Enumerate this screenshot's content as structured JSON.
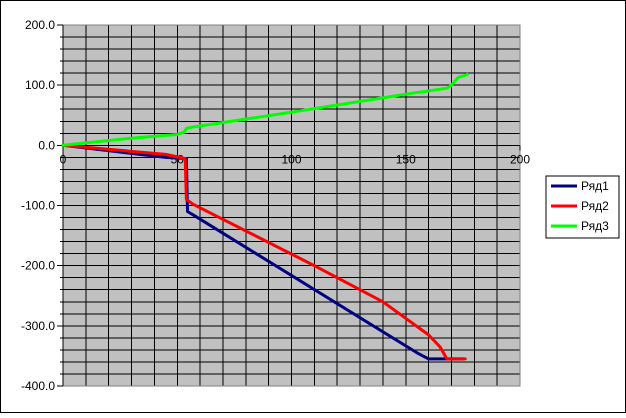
{
  "chart_data": {
    "type": "line",
    "title": "",
    "xlabel": "",
    "ylabel": "",
    "xlim": [
      0,
      200
    ],
    "ylim": [
      -400,
      200
    ],
    "x_ticks": [
      0,
      50,
      100,
      150,
      200
    ],
    "x_tick_labels": [
      "0",
      "50",
      "100",
      "150",
      "200"
    ],
    "y_ticks": [
      200,
      100,
      0,
      -100,
      -200,
      -300,
      -400
    ],
    "y_tick_labels": [
      "200.0",
      "100.0",
      "0.0",
      "-100.0",
      "-200.0",
      "-300.0",
      "-400.0"
    ],
    "grid": true,
    "legend_position": "right",
    "plot_background": "#c0c0c0",
    "series": [
      {
        "name": "Ряд1",
        "color": "#000080",
        "points": [
          [
            0,
            0
          ],
          [
            45,
            -20
          ],
          [
            54,
            -22
          ],
          [
            54.5,
            -110
          ],
          [
            58,
            -118
          ],
          [
            155,
            -345
          ],
          [
            160,
            -355
          ],
          [
            175,
            -355
          ]
        ]
      },
      {
        "name": "Ряд2",
        "color": "#ff0000",
        "points": [
          [
            0,
            0
          ],
          [
            45,
            -15
          ],
          [
            53.5,
            -22
          ],
          [
            54,
            -90
          ],
          [
            57,
            -98
          ],
          [
            110,
            -200
          ],
          [
            140,
            -260
          ],
          [
            160,
            -315
          ],
          [
            165,
            -335
          ],
          [
            168,
            -355
          ],
          [
            176,
            -355
          ]
        ]
      },
      {
        "name": "Ряд3",
        "color": "#00ff00",
        "points": [
          [
            0,
            0
          ],
          [
            30,
            12
          ],
          [
            50,
            18
          ],
          [
            53,
            22
          ],
          [
            54,
            28
          ],
          [
            56,
            30
          ],
          [
            100,
            55
          ],
          [
            150,
            85
          ],
          [
            168,
            95
          ],
          [
            170,
            100
          ],
          [
            173,
            113
          ],
          [
            175,
            115
          ],
          [
            177,
            118
          ]
        ]
      }
    ]
  }
}
